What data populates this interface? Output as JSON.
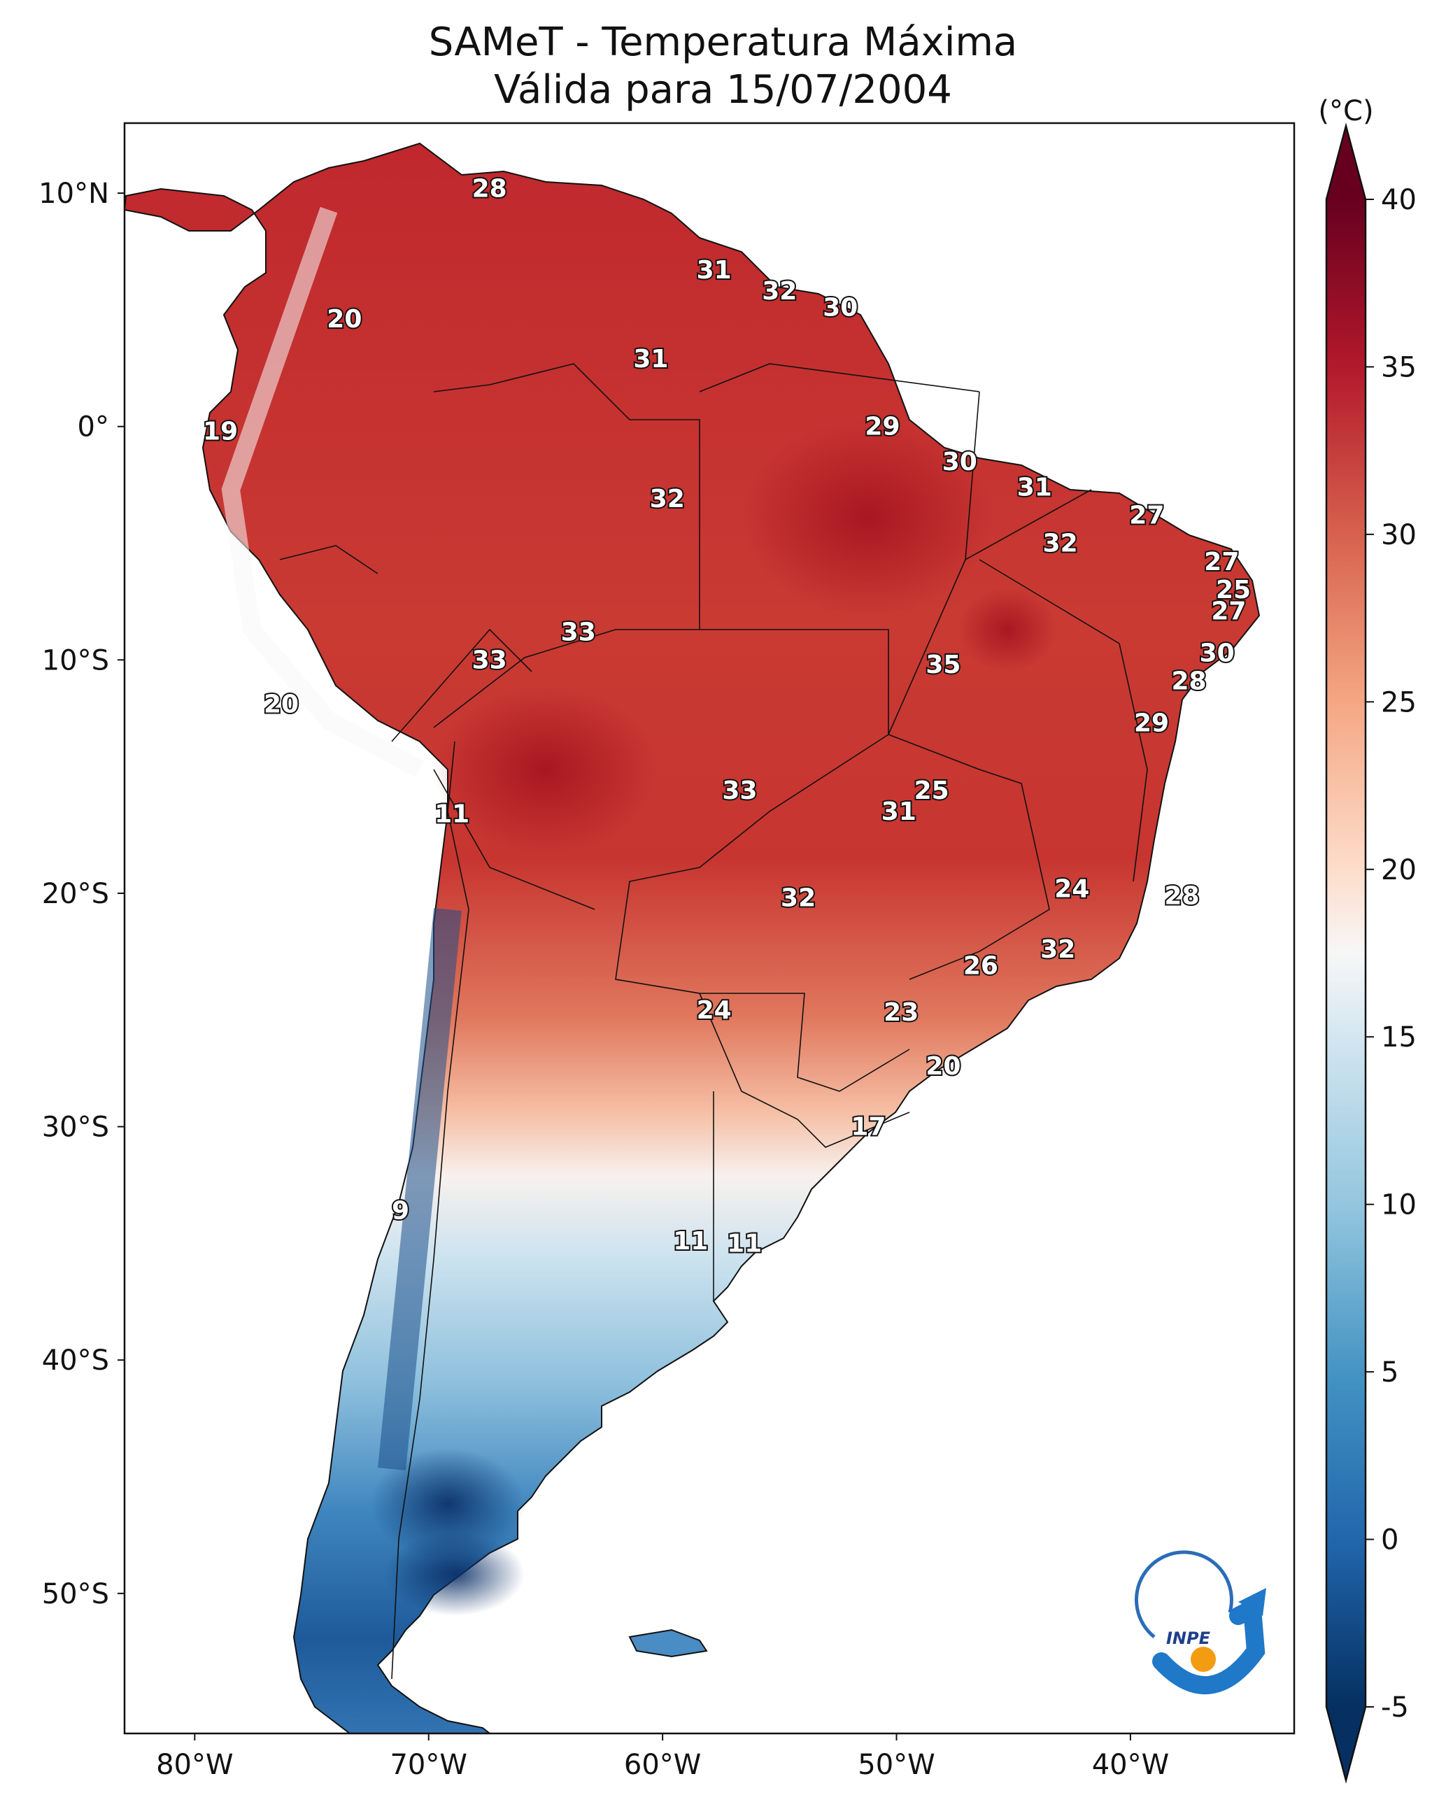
{
  "title": "SAMeT - Temperatura Máxima",
  "subtitle": "Válida para 15/07/2004",
  "colorbar": {
    "unit": "(°C)",
    "ticks": [
      "40",
      "35",
      "30",
      "25",
      "20",
      "15",
      "10",
      "5",
      "0",
      "-5"
    ],
    "min": -5,
    "max": 40,
    "extend": "both",
    "colormap": "RdBu_r"
  },
  "axes": {
    "lon_labels": [
      "80°W",
      "70°W",
      "60°W",
      "50°W",
      "40°W"
    ],
    "lat_labels": [
      "10°N",
      "0°",
      "10°S",
      "20°S",
      "30°S",
      "40°S",
      "50°S"
    ],
    "lon_range": [
      -83,
      -33
    ],
    "lat_range": [
      -56,
      13
    ]
  },
  "logo": {
    "text": "INPE",
    "colors": [
      "#1f78c8",
      "#f39c12"
    ]
  },
  "chart_data": {
    "type": "heatmap",
    "title": "SAMeT - Temperatura Máxima",
    "subtitle": "Válida para 15/07/2004",
    "unit": "°C",
    "colorbar_range": [
      -5,
      40
    ],
    "x_range": [
      -83,
      -33
    ],
    "y_range": [
      -56,
      13
    ],
    "contour_labels": [
      {
        "lon": -67.4,
        "lat": 10.2,
        "value": "28"
      },
      {
        "lon": -73.6,
        "lat": 4.6,
        "value": "20"
      },
      {
        "lon": -78.9,
        "lat": -0.2,
        "value": "19"
      },
      {
        "lon": -57.8,
        "lat": 6.7,
        "value": "31"
      },
      {
        "lon": -55.0,
        "lat": 5.8,
        "value": "32"
      },
      {
        "lon": -52.4,
        "lat": 5.1,
        "value": "30"
      },
      {
        "lon": -60.5,
        "lat": 2.9,
        "value": "31"
      },
      {
        "lon": -59.8,
        "lat": -3.1,
        "value": "32"
      },
      {
        "lon": -50.6,
        "lat": 0.0,
        "value": "29"
      },
      {
        "lon": -47.3,
        "lat": -1.5,
        "value": "30"
      },
      {
        "lon": -44.1,
        "lat": -2.6,
        "value": "31"
      },
      {
        "lon": -39.3,
        "lat": -3.8,
        "value": "27"
      },
      {
        "lon": -43.0,
        "lat": -5.0,
        "value": "32"
      },
      {
        "lon": -36.1,
        "lat": -5.8,
        "value": "27"
      },
      {
        "lon": -35.6,
        "lat": -7.0,
        "value": "25"
      },
      {
        "lon": -35.8,
        "lat": -7.9,
        "value": "27"
      },
      {
        "lon": -36.3,
        "lat": -9.7,
        "value": "30"
      },
      {
        "lon": -37.5,
        "lat": -10.9,
        "value": "28"
      },
      {
        "lon": -39.1,
        "lat": -12.7,
        "value": "29"
      },
      {
        "lon": -63.6,
        "lat": -8.8,
        "value": "33"
      },
      {
        "lon": -67.4,
        "lat": -10.0,
        "value": "33"
      },
      {
        "lon": -48.0,
        "lat": -10.2,
        "value": "35"
      },
      {
        "lon": -76.3,
        "lat": -11.9,
        "value": "20"
      },
      {
        "lon": -69.0,
        "lat": -16.6,
        "value": "11"
      },
      {
        "lon": -56.7,
        "lat": -15.6,
        "value": "33"
      },
      {
        "lon": -48.5,
        "lat": -15.6,
        "value": "25"
      },
      {
        "lon": -49.9,
        "lat": -16.5,
        "value": "31"
      },
      {
        "lon": -54.2,
        "lat": -20.2,
        "value": "32"
      },
      {
        "lon": -42.5,
        "lat": -19.8,
        "value": "24"
      },
      {
        "lon": -37.8,
        "lat": -20.1,
        "value": "28"
      },
      {
        "lon": -43.1,
        "lat": -22.4,
        "value": "32"
      },
      {
        "lon": -46.4,
        "lat": -23.1,
        "value": "26"
      },
      {
        "lon": -57.8,
        "lat": -25.0,
        "value": "24"
      },
      {
        "lon": -49.8,
        "lat": -25.1,
        "value": "23"
      },
      {
        "lon": -48.0,
        "lat": -27.4,
        "value": "20"
      },
      {
        "lon": -51.2,
        "lat": -30.0,
        "value": "17"
      },
      {
        "lon": -71.2,
        "lat": -33.6,
        "value": "9"
      },
      {
        "lon": -58.8,
        "lat": -34.9,
        "value": "11"
      },
      {
        "lon": -56.5,
        "lat": -35.0,
        "value": "11"
      }
    ]
  }
}
